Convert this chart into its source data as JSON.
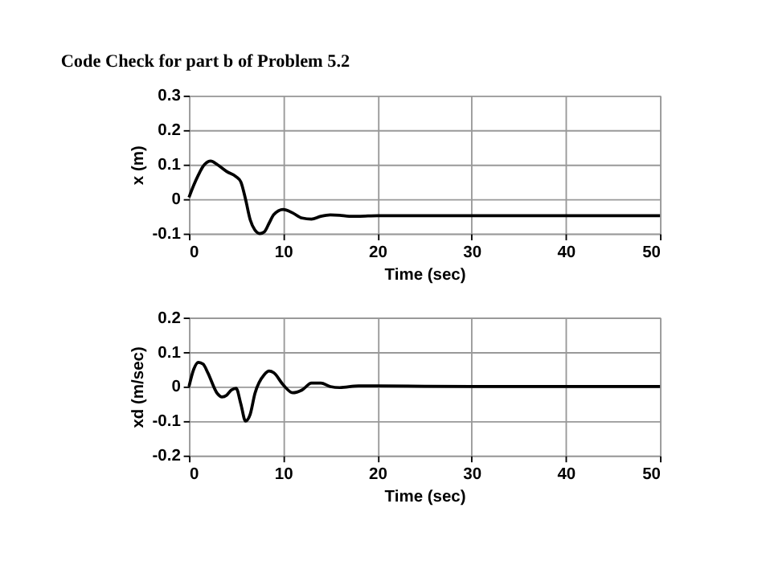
{
  "chart_data": [
    {
      "type": "line",
      "title": "Code Check for part b of Problem 5.2",
      "xlabel": "Time (sec)",
      "ylabel": "x (m)",
      "xlim": [
        0,
        50
      ],
      "xticks": [
        0,
        10,
        20,
        30,
        40,
        50
      ],
      "ylim": [
        -0.1,
        0.3
      ],
      "yticks": [
        -0.1,
        0,
        0.1,
        0.2,
        0.3
      ],
      "grid": true,
      "line_style": "solid",
      "marker": "none",
      "series": [
        {
          "color": "#000000",
          "x": [
            0,
            0.5,
            1,
            1.5,
            2.3,
            3,
            4,
            5,
            5.5,
            6,
            6.5,
            7,
            7.5,
            8,
            8.5,
            9,
            10,
            11,
            12,
            13,
            14,
            15,
            16,
            17,
            18,
            20,
            30,
            40,
            50
          ],
          "values": [
            0.005,
            0.04,
            0.07,
            0.095,
            0.11,
            0.1,
            0.08,
            0.065,
            0.05,
            0.0,
            -0.06,
            -0.09,
            -0.1,
            -0.095,
            -0.07,
            -0.045,
            -0.03,
            -0.04,
            -0.055,
            -0.058,
            -0.05,
            -0.046,
            -0.047,
            -0.05,
            -0.05,
            -0.048,
            -0.048,
            -0.048,
            -0.048
          ]
        }
      ]
    },
    {
      "type": "line",
      "xlabel": "Time (sec)",
      "ylabel": "xd (m/sec)",
      "xlim": [
        0,
        50
      ],
      "xticks": [
        0,
        10,
        20,
        30,
        40,
        50
      ],
      "ylim": [
        -0.2,
        0.2
      ],
      "yticks": [
        -0.2,
        -0.1,
        0,
        0.1,
        0.2
      ],
      "grid": true,
      "line_style": "solid",
      "marker": "none",
      "series": [
        {
          "color": "#000000",
          "x": [
            0,
            0.5,
            1,
            1.5,
            2,
            3,
            3.5,
            4,
            4.5,
            5,
            5.5,
            6,
            6.5,
            7,
            8,
            8.5,
            9,
            10,
            11,
            12,
            13,
            14,
            15,
            16,
            18,
            20,
            30,
            40,
            50
          ],
          "values": [
            0.0,
            0.05,
            0.07,
            0.065,
            0.04,
            -0.02,
            -0.03,
            -0.025,
            -0.01,
            -0.005,
            -0.05,
            -0.1,
            -0.08,
            -0.02,
            0.035,
            0.045,
            0.04,
            0.005,
            -0.018,
            -0.01,
            0.01,
            0.01,
            0.0,
            -0.003,
            0.002,
            0.002,
            0.0,
            0.0,
            0.0
          ]
        }
      ]
    }
  ]
}
